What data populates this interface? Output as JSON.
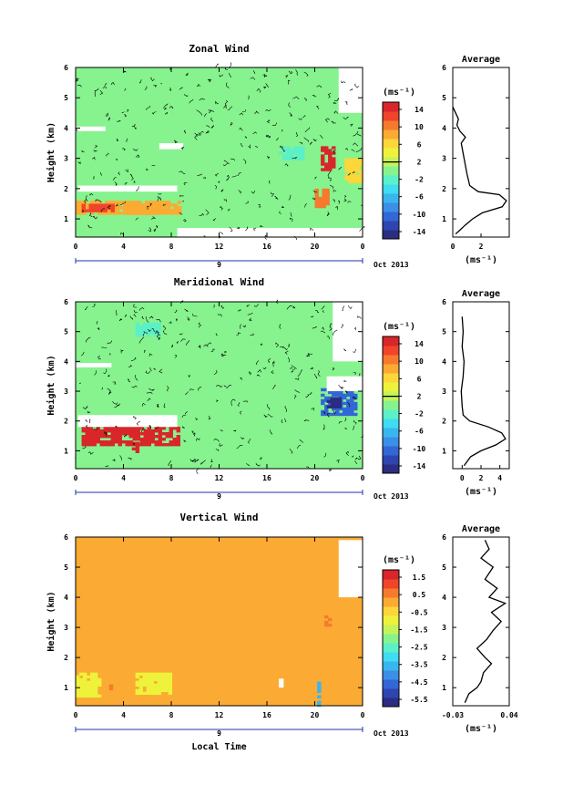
{
  "figure": {
    "shared_xlabel": "Local Time",
    "date_label": "Oct 2013",
    "day_label": "9",
    "ylabel": "Height (km)",
    "profile_title": "Average",
    "unit_label": "(ms⁻¹)"
  },
  "colormap": [
    "#2b2d82",
    "#2e45b0",
    "#3366d6",
    "#3b8fe6",
    "#3ab6ef",
    "#3fdcf2",
    "#5cf0c8",
    "#86f38e",
    "#c5f35a",
    "#eef23a",
    "#fdd63a",
    "#fbaa33",
    "#f67a2d",
    "#f0442b",
    "#d8262a"
  ],
  "chart_data": [
    {
      "type": "heatmap",
      "title": "Zonal Wind",
      "xlabel": "Local Time",
      "ylabel": "Height (km)",
      "xticks": [
        "0",
        "4",
        "8",
        "12",
        "16",
        "20",
        "0"
      ],
      "xlim": [
        0,
        24
      ],
      "yticks": [
        "1",
        "2",
        "3",
        "4",
        "5",
        "6"
      ],
      "ylim": [
        0.4,
        6
      ],
      "colorbar": {
        "label": "(ms⁻¹)",
        "ticks": [
          "14",
          "10",
          "6",
          "2",
          "-2",
          "-6",
          "-10",
          "-14"
        ],
        "min": -16,
        "max": 16,
        "zero_line": 2
      },
      "background_value": 1,
      "features": [
        {
          "t": [
            0,
            8.7
          ],
          "z": [
            1.2,
            1.6
          ],
          "value": 8
        },
        {
          "t": [
            0.5,
            3
          ],
          "z": [
            1.3,
            1.5
          ],
          "value": 12
        },
        {
          "t": [
            4.5,
            7
          ],
          "z": [
            1.2,
            1.5
          ],
          "value": 9
        },
        {
          "t": [
            20.5,
            21.6
          ],
          "z": [
            2.6,
            3.4
          ],
          "value": 14
        },
        {
          "t": [
            20,
            21
          ],
          "z": [
            1.4,
            2.0
          ],
          "value": 11
        },
        {
          "t": [
            22.5,
            24
          ],
          "z": [
            2.2,
            3.0
          ],
          "value": 7
        },
        {
          "t": [
            17,
            19
          ],
          "z": [
            3.0,
            3.4
          ],
          "value": -3
        }
      ],
      "gaps": [
        {
          "t": [
            0,
            2.5
          ],
          "z": [
            3.9,
            4.05
          ]
        },
        {
          "t": [
            7,
            9
          ],
          "z": [
            3.3,
            3.5
          ]
        },
        {
          "t": [
            0.2,
            8.5
          ],
          "z": [
            1.9,
            2.1
          ]
        },
        {
          "t": [
            8.5,
            24
          ],
          "z": [
            0.4,
            0.7
          ]
        },
        {
          "t": [
            22,
            24
          ],
          "z": [
            4.5,
            6
          ]
        }
      ],
      "profile": {
        "xlim": [
          0,
          4
        ],
        "xticks": [
          "0",
          "2"
        ],
        "xlabel": "(ms⁻¹)",
        "ylim": [
          0.4,
          6
        ],
        "yticks": [
          "1",
          "2",
          "3",
          "4",
          "5",
          "6"
        ],
        "z": [
          0.5,
          0.8,
          1.0,
          1.2,
          1.4,
          1.6,
          1.8,
          1.9,
          2.1,
          2.5,
          3.0,
          3.5,
          3.7,
          3.9,
          4.1,
          4.3,
          4.5,
          4.7
        ],
        "values": [
          0.2,
          0.9,
          1.4,
          2.1,
          3.5,
          3.8,
          3.3,
          1.8,
          1.2,
          1.0,
          0.8,
          0.6,
          0.9,
          0.5,
          0.3,
          0.4,
          0.2,
          0.0
        ]
      }
    },
    {
      "type": "heatmap",
      "title": "Meridional Wind",
      "xlabel": "Local Time",
      "ylabel": "Height (km)",
      "xticks": [
        "0",
        "4",
        "8",
        "12",
        "16",
        "20",
        "0"
      ],
      "xlim": [
        0,
        24
      ],
      "yticks": [
        "1",
        "2",
        "3",
        "4",
        "5",
        "6"
      ],
      "ylim": [
        0.4,
        6
      ],
      "colorbar": {
        "label": "(ms⁻¹)",
        "ticks": [
          "14",
          "10",
          "6",
          "2",
          "-2",
          "-6",
          "-10",
          "-14"
        ],
        "min": -16,
        "max": 16,
        "zero_line": 2
      },
      "background_value": 0,
      "features": [
        {
          "t": [
            0.5,
            8.5
          ],
          "z": [
            1.2,
            1.9
          ],
          "value": 14
        },
        {
          "t": [
            4.7,
            5.3
          ],
          "z": [
            1.0,
            1.3
          ],
          "value": 14
        },
        {
          "t": [
            5,
            7
          ],
          "z": [
            4.9,
            5.3
          ],
          "value": -3
        },
        {
          "t": [
            20.5,
            23.5
          ],
          "z": [
            2.2,
            3.1
          ],
          "value": -10
        },
        {
          "t": [
            21,
            22
          ],
          "z": [
            2.5,
            2.8
          ],
          "value": -14
        }
      ],
      "gaps": [
        {
          "t": [
            0.2,
            8.5
          ],
          "z": [
            1.8,
            2.2
          ]
        },
        {
          "t": [
            0,
            3
          ],
          "z": [
            3.8,
            3.95
          ]
        },
        {
          "t": [
            21,
            24
          ],
          "z": [
            3.0,
            3.5
          ]
        },
        {
          "t": [
            21.5,
            24
          ],
          "z": [
            4.0,
            6
          ]
        }
      ],
      "profile": {
        "xlim": [
          -1,
          5
        ],
        "xticks": [
          "0",
          "2",
          "4"
        ],
        "xlabel": "(ms⁻¹)",
        "ylim": [
          0.4,
          6
        ],
        "yticks": [
          "1",
          "2",
          "3",
          "4",
          "5",
          "6"
        ],
        "z": [
          0.5,
          0.8,
          1.0,
          1.2,
          1.4,
          1.6,
          1.8,
          2.0,
          2.2,
          2.5,
          3.0,
          3.5,
          4.0,
          4.5,
          5.0,
          5.5
        ],
        "values": [
          0.2,
          0.9,
          2.0,
          3.6,
          4.6,
          4.2,
          2.8,
          0.8,
          0.1,
          0.0,
          -0.1,
          0.1,
          0.2,
          0.0,
          0.1,
          0.0
        ]
      }
    },
    {
      "type": "heatmap",
      "title": "Vertical Wind",
      "xlabel": "Local Time",
      "ylabel": "Height (km)",
      "xticks": [
        "0",
        "4",
        "8",
        "12",
        "16",
        "20",
        "0"
      ],
      "xlim": [
        0,
        24
      ],
      "yticks": [
        "1",
        "2",
        "3",
        "4",
        "5",
        "6"
      ],
      "ylim": [
        0.4,
        6
      ],
      "colorbar": {
        "label": "(ms⁻¹)",
        "ticks": [
          "1.5",
          "0.5",
          "-0.5",
          "-1.5",
          "-2.5",
          "-3.5",
          "-4.5",
          "-5.5"
        ],
        "min": -6,
        "max": 2,
        "zero_line": null
      },
      "background_value": 0.2,
      "features": [
        {
          "t": [
            0,
            2
          ],
          "z": [
            0.7,
            1.5
          ],
          "value": -0.8
        },
        {
          "t": [
            5,
            8
          ],
          "z": [
            0.8,
            1.5
          ],
          "value": -0.8
        },
        {
          "t": [
            20.2,
            20.4
          ],
          "z": [
            0.4,
            1.2
          ],
          "value": -3.5
        },
        {
          "t": [
            2.8,
            3.1
          ],
          "z": [
            1.0,
            1.2
          ],
          "value": 0.9
        },
        {
          "t": [
            20.8,
            21.2
          ],
          "z": [
            3.1,
            3.4
          ],
          "value": 0.8
        }
      ],
      "gaps": [
        {
          "t": [
            17,
            17.4
          ],
          "z": [
            1.0,
            1.3
          ]
        },
        {
          "t": [
            22,
            24
          ],
          "z": [
            4.0,
            5.9
          ]
        }
      ],
      "profile": {
        "xlim": [
          -0.03,
          0.04
        ],
        "xticks": [
          "-0.03",
          "0.04"
        ],
        "xlabel": "(ms⁻¹)",
        "ylim": [
          0.4,
          6
        ],
        "yticks": [
          "1",
          "2",
          "3",
          "4",
          "5",
          "6"
        ],
        "z": [
          0.5,
          0.8,
          1.0,
          1.2,
          1.5,
          1.8,
          2.0,
          2.3,
          2.6,
          2.9,
          3.2,
          3.5,
          3.8,
          4.0,
          4.3,
          4.6,
          5.0,
          5.3,
          5.6,
          5.9
        ],
        "values": [
          -0.015,
          -0.01,
          0.0,
          0.005,
          0.008,
          0.018,
          0.01,
          0.0,
          0.012,
          0.02,
          0.03,
          0.018,
          0.035,
          0.015,
          0.025,
          0.01,
          0.02,
          0.005,
          0.015,
          0.01
        ]
      }
    }
  ]
}
